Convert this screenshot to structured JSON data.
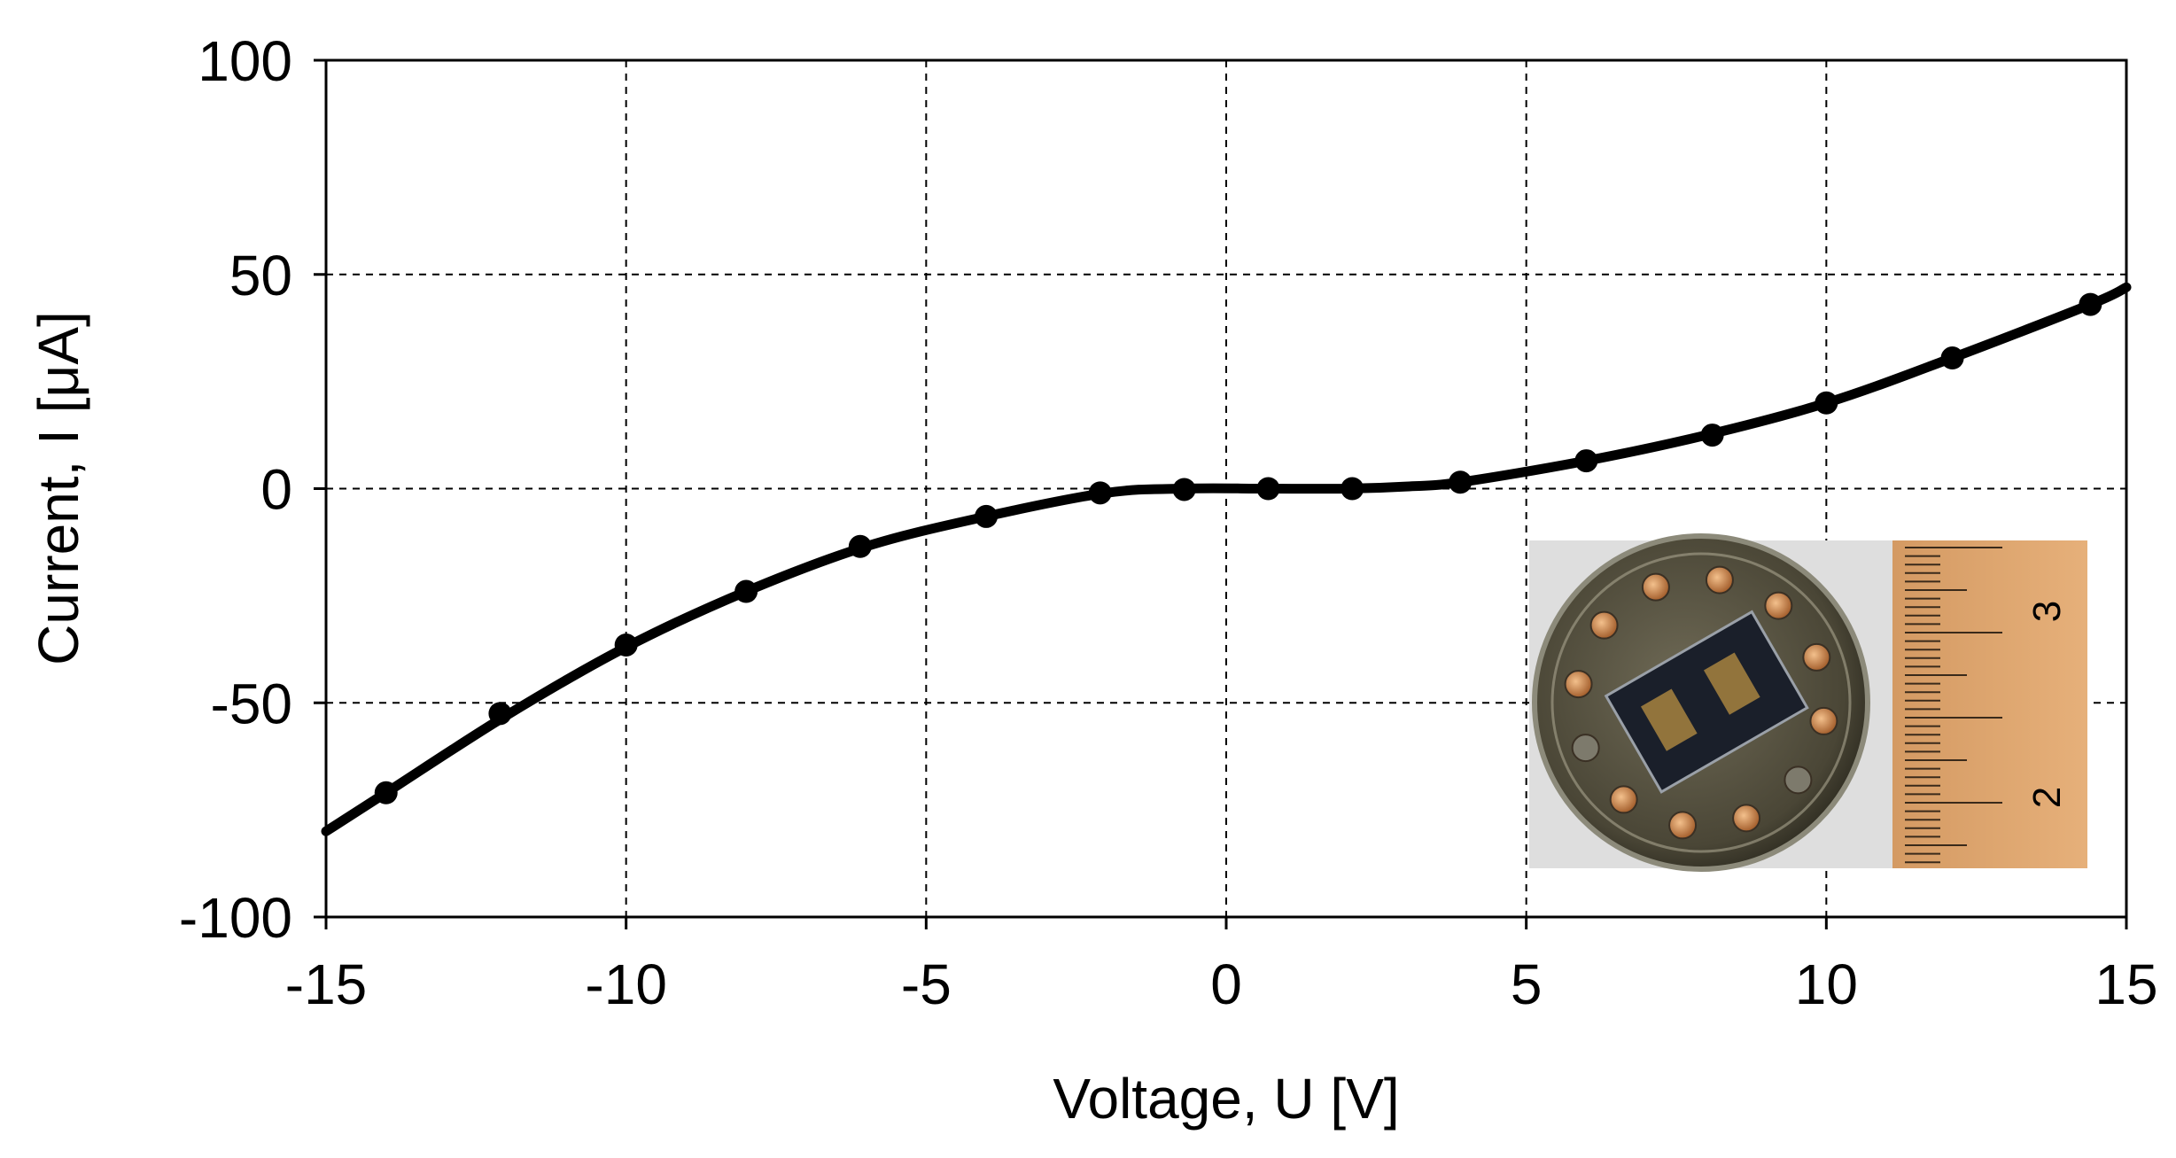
{
  "chart_data": {
    "type": "line",
    "title": "",
    "xlabel": "Voltage, U  [V]",
    "ylabel": "Current, I  [μA]",
    "xlim": [
      -15,
      15
    ],
    "ylim": [
      -100,
      100
    ],
    "xticks": [
      -15,
      -10,
      -5,
      0,
      5,
      10,
      15
    ],
    "yticks": [
      -100,
      -50,
      0,
      50,
      100
    ],
    "xtick_labels": [
      "-15",
      "-10",
      "-5",
      "0",
      "5",
      "10",
      "15"
    ],
    "ytick_labels": [
      "-100",
      "-50",
      "0",
      "50",
      "100"
    ],
    "grid": true,
    "legend": "none",
    "line_color": "#000000",
    "curve": {
      "x": [
        -15,
        -14,
        -12,
        -10,
        -8,
        -6,
        -4,
        -2,
        -0.7,
        0.7,
        2,
        3,
        3.9,
        6,
        8,
        10,
        12,
        14.4,
        15
      ],
      "y": [
        -80,
        -71,
        -53,
        -37,
        -24,
        -13.5,
        -6.5,
        -1,
        0,
        0,
        0,
        0.5,
        1.5,
        6.5,
        12.5,
        20,
        30,
        43,
        47
      ]
    },
    "markers": {
      "x": [
        -14,
        -12.1,
        -10,
        -8,
        -6.1,
        -4,
        -2.1,
        -0.7,
        0.7,
        2.1,
        3.9,
        6,
        8.1,
        10,
        12.1,
        14.4
      ],
      "y": [
        -71,
        -52.5,
        -36.5,
        -24,
        -13.5,
        -6.5,
        -1,
        -0.2,
        0,
        0,
        1.5,
        6.5,
        12.5,
        20,
        30.5,
        43
      ]
    },
    "inset": {
      "description_icon": "sensor-chip-photo",
      "ruler_labels": [
        "3",
        "2"
      ]
    }
  }
}
